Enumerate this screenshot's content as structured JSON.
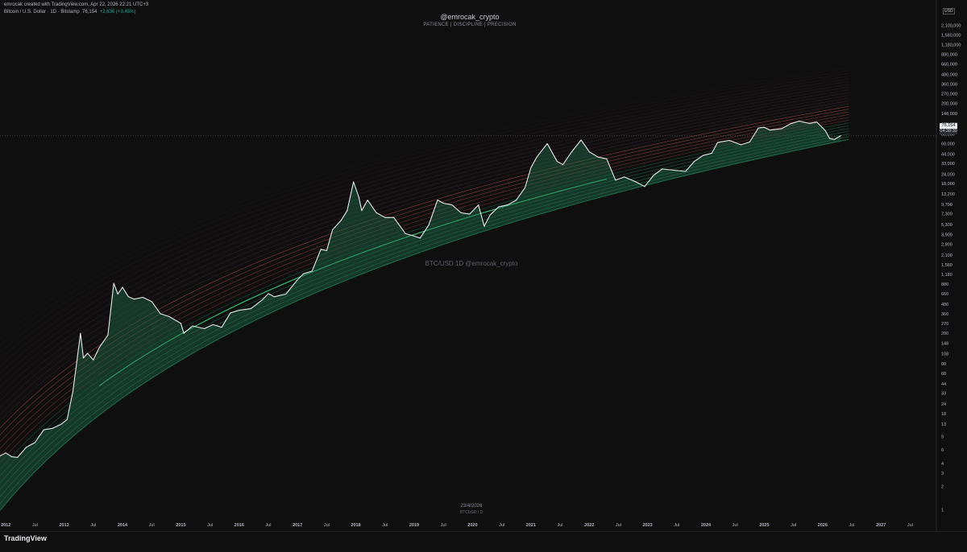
{
  "header": {
    "created_line": "emrocak created with TradingView.com, Apr 22, 2026 22:21 UTC+3",
    "symbol_line": "Bitcoin / U.S. Dollar · 1D · Bitstamp",
    "last_price": "76,154",
    "change": "+2,636 (+3.45%)"
  },
  "watermark": {
    "title": "@emrocak_crypto",
    "subtitle": "PATIENCE  |  DISCIPLINE  |  PRECISION",
    "center": "BTC/USD 1D  @emrocak_crypto"
  },
  "price_badge": {
    "price": "76,154",
    "countdown": "04:38:30"
  },
  "axis_currency": "USD",
  "bottom": {
    "date": "23/4/2026",
    "symbol": "BTCUSD | D"
  },
  "branding": "TradingView",
  "colors": {
    "background": "#0f0f10",
    "price_line": "#e8e9ec",
    "band_red": "#e05252",
    "band_green": "#26c281",
    "fill_green": "#1e6b49",
    "axis_text": "#b2b5be"
  },
  "chart_data": {
    "type": "line",
    "scale": "log",
    "ylim": [
      0.7,
      4500000
    ],
    "xlim": [
      2011.9,
      2027.95
    ],
    "y_ticks": [
      1,
      2,
      3,
      4,
      6,
      9,
      13,
      18,
      24,
      33,
      44,
      60,
      80,
      108,
      148,
      200,
      270,
      360,
      480,
      660,
      880,
      1180,
      1580,
      2100,
      2900,
      3900,
      5300,
      7300,
      9700,
      13200,
      18000,
      24000,
      33000,
      44000,
      60000,
      80000,
      108000,
      148000,
      200000,
      270000,
      360000,
      480000,
      660000,
      880000,
      1180000,
      1580000,
      2100000
    ],
    "y_tick_labels": [
      "1",
      "2",
      "3",
      "4",
      "6",
      "9",
      "13",
      "18",
      "24",
      "33",
      "44",
      "60",
      "80",
      "108",
      "148",
      "200",
      "270",
      "360",
      "480",
      "660",
      "880",
      "1,180",
      "1,580",
      "2,100",
      "2,900",
      "3,900",
      "5,300",
      "7,300",
      "9,700",
      "13,200",
      "18,000",
      "24,000",
      "33,000",
      "44,000",
      "60,000",
      "80,000",
      "108,000",
      "148,000",
      "200,000",
      "270,000",
      "360,000",
      "480,000",
      "660,000",
      "880,000",
      "1,180,000",
      "1,580,000",
      "2,100,000"
    ],
    "x_ticks": [
      2012.0,
      2012.5,
      2013.0,
      2013.5,
      2014.0,
      2014.5,
      2015.0,
      2015.5,
      2016.0,
      2016.5,
      2017.0,
      2017.5,
      2018.0,
      2018.5,
      2019.0,
      2019.5,
      2020.0,
      2020.5,
      2021.0,
      2021.5,
      2022.0,
      2022.5,
      2023.0,
      2023.5,
      2024.0,
      2024.5,
      2025.0,
      2025.5,
      2026.0,
      2026.5,
      2027.0,
      2027.5
    ],
    "x_tick_labels": [
      "2012",
      "Jul",
      "2013",
      "Jul",
      "2014",
      "Jul",
      "2015",
      "Jul",
      "2016",
      "Jul",
      "2017",
      "Jul",
      "2018",
      "Jul",
      "2019",
      "Jul",
      "2020",
      "Jul",
      "2021",
      "Jul",
      "2022",
      "Jul",
      "2023",
      "Jul",
      "2024",
      "Jul",
      "2025",
      "Jul",
      "2026",
      "Jul",
      "2027",
      "Jul"
    ],
    "current_price": 76154,
    "price_series": {
      "x": [
        2011.9,
        2012.0,
        2012.1,
        2012.2,
        2012.35,
        2012.5,
        2012.65,
        2012.8,
        2012.95,
        2013.05,
        2013.15,
        2013.28,
        2013.33,
        2013.4,
        2013.5,
        2013.6,
        2013.75,
        2013.85,
        2013.92,
        2014.0,
        2014.1,
        2014.2,
        2014.35,
        2014.5,
        2014.65,
        2014.8,
        2015.0,
        2015.05,
        2015.2,
        2015.4,
        2015.55,
        2015.7,
        2015.85,
        2016.0,
        2016.2,
        2016.4,
        2016.5,
        2016.6,
        2016.8,
        2017.0,
        2017.1,
        2017.25,
        2017.4,
        2017.5,
        2017.6,
        2017.75,
        2017.85,
        2017.96,
        2018.05,
        2018.1,
        2018.2,
        2018.35,
        2018.5,
        2018.65,
        2018.85,
        2018.96,
        2019.1,
        2019.25,
        2019.4,
        2019.5,
        2019.65,
        2019.8,
        2019.95,
        2020.1,
        2020.2,
        2020.3,
        2020.45,
        2020.6,
        2020.75,
        2020.9,
        2021.0,
        2021.1,
        2021.28,
        2021.45,
        2021.55,
        2021.7,
        2021.86,
        2022.0,
        2022.15,
        2022.3,
        2022.45,
        2022.6,
        2022.8,
        2022.95,
        2023.1,
        2023.25,
        2023.45,
        2023.65,
        2023.8,
        2023.95,
        2024.1,
        2024.2,
        2024.4,
        2024.6,
        2024.75,
        2024.9,
        2025.0,
        2025.1,
        2025.3,
        2025.45,
        2025.6,
        2025.77,
        2025.9,
        2026.05,
        2026.12,
        2026.2,
        2026.31
      ],
      "y": [
        5,
        5.5,
        4.9,
        4.8,
        6.5,
        7.5,
        11,
        11.5,
        13,
        15,
        35,
        200,
        95,
        110,
        90,
        130,
        190,
        900,
        650,
        800,
        600,
        560,
        590,
        520,
        360,
        330,
        270,
        200,
        250,
        230,
        260,
        240,
        370,
        400,
        420,
        550,
        660,
        600,
        650,
        1000,
        1200,
        1300,
        2500,
        2400,
        4500,
        6000,
        8000,
        19000,
        12000,
        8000,
        11000,
        7500,
        6500,
        6500,
        4000,
        3800,
        3500,
        5200,
        11000,
        10000,
        9500,
        7500,
        7200,
        9500,
        5000,
        7000,
        9000,
        9500,
        11000,
        16000,
        29000,
        40000,
        60000,
        35000,
        32000,
        47000,
        67000,
        47000,
        40000,
        38000,
        20000,
        22000,
        19000,
        16500,
        23000,
        28000,
        27000,
        26000,
        35000,
        42000,
        45000,
        62000,
        66000,
        58000,
        63000,
        96000,
        98000,
        90000,
        94000,
        109000,
        118000,
        110000,
        115000,
        88000,
        70000,
        68000,
        76154
      ]
    },
    "bands": {
      "description": "Upward-sloping logarithmic regression rainbow bands: green support bands on the lower side, red resistance bands above, faint dotted upper bands",
      "upper_price_2026": 165000,
      "lower_price_2026": 58000,
      "upper_price_2012": 15,
      "lower_price_2012": 1.2
    }
  }
}
